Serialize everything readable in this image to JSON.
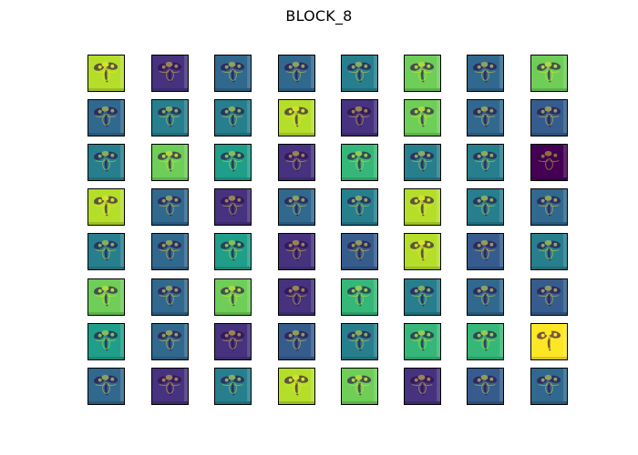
{
  "figure": {
    "title": "BLOCK_8"
  },
  "grid": {
    "rows": 8,
    "cols": 8
  },
  "palette": {
    "deep_purple": "#440154",
    "purple": "#46327e",
    "indigo": "#365c8d",
    "blue": "#31688e",
    "teal_blue": "#277f8e",
    "teal": "#1f9e89",
    "green_teal": "#35b779",
    "green": "#6ece58",
    "lime": "#b5de2b",
    "yellow": "#fde725"
  },
  "feature_maps": [
    [
      "lime",
      "purple",
      "blue",
      "blue",
      "teal_blue",
      "green",
      "blue",
      "green"
    ],
    [
      "blue",
      "teal_blue",
      "teal_blue",
      "lime",
      "purple",
      "green",
      "blue",
      "indigo"
    ],
    [
      "teal_blue",
      "green",
      "teal",
      "purple",
      "green_teal",
      "teal_blue",
      "teal_blue",
      "deep_purple"
    ],
    [
      "lime",
      "blue",
      "purple",
      "blue",
      "teal_blue",
      "lime",
      "teal_blue",
      "blue"
    ],
    [
      "teal_blue",
      "blue",
      "teal",
      "purple",
      "indigo",
      "lime",
      "indigo",
      "teal_blue"
    ],
    [
      "green",
      "blue",
      "green",
      "purple",
      "green_teal",
      "teal_blue",
      "blue",
      "indigo"
    ],
    [
      "teal",
      "blue",
      "purple",
      "indigo",
      "teal_blue",
      "green_teal",
      "green_teal",
      "yellow"
    ],
    [
      "blue",
      "purple",
      "teal_blue",
      "lime",
      "green",
      "purple",
      "indigo",
      "blue"
    ]
  ]
}
